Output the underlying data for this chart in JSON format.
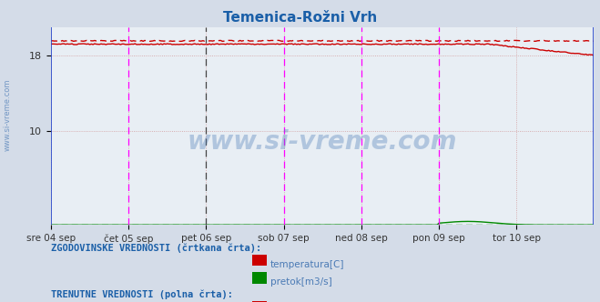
{
  "title": "Temenica-Rožni Vrh",
  "title_color": "#1a5fa8",
  "title_fontsize": 11,
  "bg_color": "#d4dce8",
  "plot_bg_color": "#e8eef4",
  "watermark": "www.si-vreme.com",
  "watermark_color": "#4a7ab5",
  "watermark_alpha": 0.35,
  "ylim": [
    0,
    21
  ],
  "yticks": [
    10,
    18
  ],
  "xlim": [
    0,
    336
  ],
  "xtick_labels": [
    "sre 04 sep",
    "čet 05 sep",
    "pet 06 sep",
    "sob 07 sep",
    "ned 08 sep",
    "pon 09 sep",
    "tor 10 sep"
  ],
  "xtick_positions": [
    0,
    48,
    96,
    144,
    192,
    240,
    288
  ],
  "day_vlines_magenta": [
    48,
    144,
    192,
    240,
    336
  ],
  "day_vlines_black_dashed": [
    96
  ],
  "temp_solid_value": 19.2,
  "temp_solid_drop_start": 270,
  "temp_solid_end_value": 18.0,
  "temp_dashed_value": 19.55,
  "pretok_solid_bump_start": 240,
  "pretok_solid_bump_peak": 258,
  "pretok_solid_peak_value": 0.38,
  "pretok_dashed_value": 0.04,
  "colors": {
    "temp_solid": "#cc0000",
    "temp_dashed": "#cc0000",
    "pretok_solid": "#008800",
    "pretok_dashed": "#008800",
    "vline_magenta": "#ff00ff",
    "vline_black": "#444444",
    "grid_dotted": "#d09090"
  },
  "legend_text_color": "#1a5fa8",
  "legend_label_color": "#4a7ab5",
  "legend1_title": "ZGODOVINSKE VREDNOSTI (črtkana črta):",
  "legend2_title": "TRENUTNE VREDNOSTI (polna črta):",
  "legend_items": [
    "temperatura[C]",
    "pretok[m3/s]"
  ],
  "legend_icon_colors_hist": [
    "#cc0000",
    "#008800"
  ],
  "legend_icon_colors_curr": [
    "#cc0000",
    "#008800"
  ],
  "watermark_side": "www.si-vreme.com"
}
